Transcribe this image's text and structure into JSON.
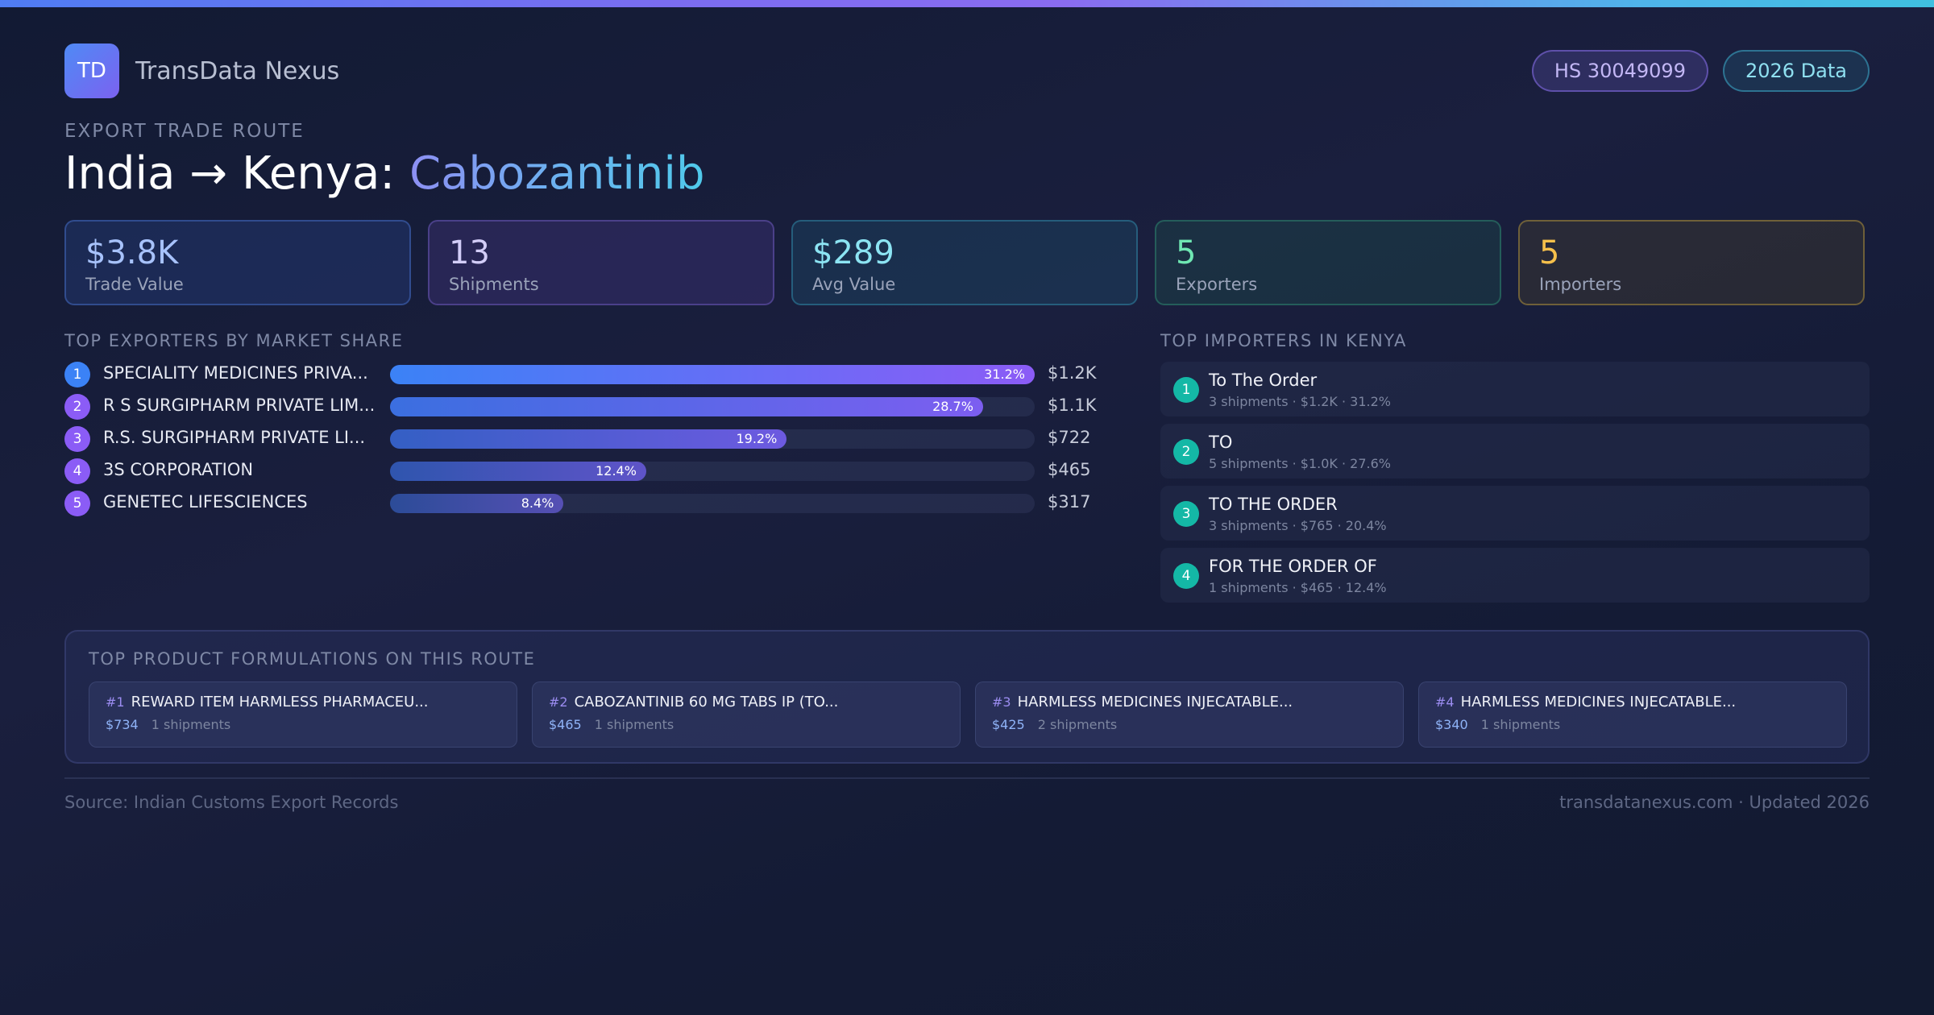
{
  "brand": {
    "logo_text": "TD",
    "name": "TransData Nexus"
  },
  "badges": {
    "hs_code": "HS 30049099",
    "year": "2026 Data"
  },
  "header": {
    "kicker": "EXPORT TRADE ROUTE",
    "route": "India → Kenya: ",
    "product": "Cabozantinib"
  },
  "stats": [
    {
      "value": "$3.8K",
      "label": "Trade Value"
    },
    {
      "value": "13",
      "label": "Shipments"
    },
    {
      "value": "$289",
      "label": "Avg Value"
    },
    {
      "value": "5",
      "label": "Exporters"
    },
    {
      "value": "5",
      "label": "Importers"
    }
  ],
  "exporters": {
    "section_label": "TOP EXPORTERS BY MARKET SHARE",
    "items": [
      {
        "rank": "1",
        "name": "SPECIALITY MEDICINES PRIVA...",
        "share": 31.2,
        "share_label": "31.2%",
        "value": "$1.2K"
      },
      {
        "rank": "2",
        "name": "R S SURGIPHARM PRIVATE LIM...",
        "share": 28.7,
        "share_label": "28.7%",
        "value": "$1.1K"
      },
      {
        "rank": "3",
        "name": "R.S. SURGIPHARM PRIVATE LI...",
        "share": 19.2,
        "share_label": "19.2%",
        "value": "$722"
      },
      {
        "rank": "4",
        "name": "3S CORPORATION",
        "share": 12.4,
        "share_label": "12.4%",
        "value": "$465"
      },
      {
        "rank": "5",
        "name": "GENETEC LIFESCIENCES",
        "share": 8.4,
        "share_label": "8.4%",
        "value": "$317"
      }
    ]
  },
  "importers": {
    "section_label": "TOP IMPORTERS IN KENYA",
    "items": [
      {
        "rank": "1",
        "name": "To The Order",
        "meta": "3 shipments · $1.2K · 31.2%"
      },
      {
        "rank": "2",
        "name": "TO",
        "meta": "5 shipments · $1.0K · 27.6%"
      },
      {
        "rank": "3",
        "name": "TO THE ORDER",
        "meta": "3 shipments · $765 · 20.4%"
      },
      {
        "rank": "4",
        "name": "FOR THE ORDER OF",
        "meta": "1 shipments · $465 · 12.4%"
      }
    ]
  },
  "formulations": {
    "section_label": "TOP PRODUCT FORMULATIONS ON THIS ROUTE",
    "items": [
      {
        "rank": "#1",
        "name": "REWARD ITEM HARMLESS PHARMACEU...",
        "value": "$734",
        "shipments": "1 shipments"
      },
      {
        "rank": "#2",
        "name": "CABOZANTINIB 60 MG TABS IP (TO...",
        "value": "$465",
        "shipments": "1 shipments"
      },
      {
        "rank": "#3",
        "name": "HARMLESS MEDICINES INJECATABLE...",
        "value": "$425",
        "shipments": "2 shipments"
      },
      {
        "rank": "#4",
        "name": "HARMLESS MEDICINES INJECATABLE...",
        "value": "$340",
        "shipments": "1 shipments"
      }
    ]
  },
  "footer": {
    "source": "Source: Indian Customs Export Records",
    "site": "transdatanexus.com · Updated 2026"
  },
  "colors": {
    "exporter_rank_1": "#3b82f6",
    "exporter_rank_other": "#8b5cf6",
    "importer_rank": "#14b8a6"
  }
}
